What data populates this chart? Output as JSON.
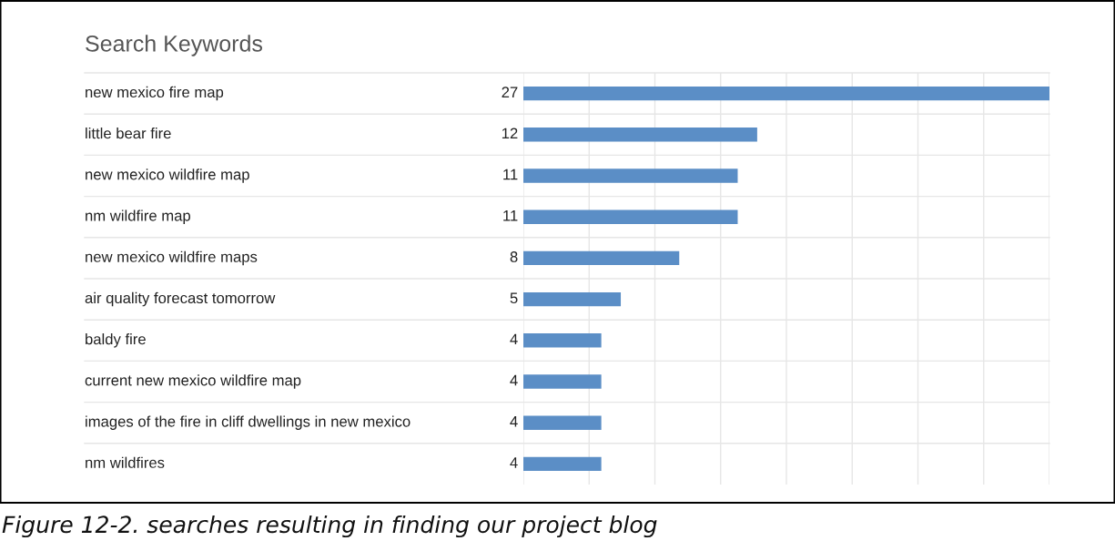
{
  "chart_data": {
    "type": "bar",
    "orientation": "horizontal",
    "title": "Search Keywords",
    "categories": [
      "new mexico fire map",
      "little bear fire",
      "new mexico wildfire map",
      "nm wildfire map",
      "new mexico wildfire maps",
      "air quality forecast tomorrow",
      "baldy fire",
      "current new mexico wildfire map",
      "images of the fire in cliff dwellings in new mexico",
      "nm wildfires"
    ],
    "values": [
      27,
      12,
      11,
      11,
      8,
      5,
      4,
      4,
      4,
      4
    ],
    "color": "#5b8ec6",
    "data_labels": true,
    "xlim": [
      0,
      27
    ],
    "xticks": [
      {
        "value": 0,
        "label": null
      },
      {
        "value": 3.375,
        "label": null
      },
      {
        "value": 6.75,
        "label": null
      },
      {
        "value": 10.125,
        "label": null
      },
      {
        "value": 13.5,
        "label": null
      },
      {
        "value": 16.875,
        "label": null
      },
      {
        "value": 20.25,
        "label": null
      },
      {
        "value": 23.625,
        "label": null
      },
      {
        "value": 27,
        "label": null
      }
    ],
    "grid": "x",
    "annotations": [
      "Figure 12-2. searches resulting in finding our project blog"
    ]
  }
}
